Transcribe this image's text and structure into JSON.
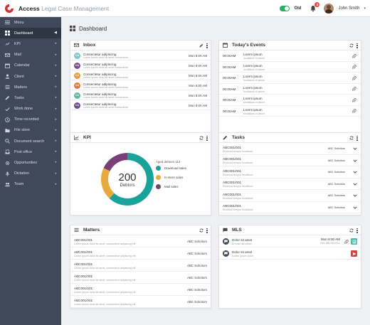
{
  "app": {
    "brand_name": "Access",
    "brand_product": "Legal Case Management",
    "toggle_label": "Old",
    "notification_count": "3",
    "user_name": "John Smith"
  },
  "sidebar": {
    "items": [
      {
        "label": "Menu",
        "icon": "hamburger-icon",
        "chevron": false
      },
      {
        "label": "Dashboard",
        "icon": "dashboard-icon",
        "chevron": true,
        "active": true
      },
      {
        "label": "KPI",
        "icon": "chart-line-icon",
        "chevron": true
      },
      {
        "label": "Mail",
        "icon": "mail-icon",
        "chevron": true
      },
      {
        "label": "Calendar",
        "icon": "calendar-icon",
        "chevron": true
      },
      {
        "label": "Client",
        "icon": "person-icon",
        "chevron": true
      },
      {
        "label": "Matters",
        "icon": "list-icon",
        "chevron": true
      },
      {
        "label": "Tasks",
        "icon": "pencil-icon",
        "chevron": true
      },
      {
        "label": "Work done",
        "icon": "check-icon",
        "chevron": true
      },
      {
        "label": "Time recorded",
        "icon": "clock-icon",
        "chevron": true
      },
      {
        "label": "File store",
        "icon": "folder-icon",
        "chevron": true
      },
      {
        "label": "Document search",
        "icon": "search-icon",
        "chevron": true
      },
      {
        "label": "Post office",
        "icon": "inbox-icon",
        "chevron": true
      },
      {
        "label": "Opportunities",
        "icon": "gear-icon",
        "chevron": true
      },
      {
        "label": "Dictation",
        "icon": "microphone-icon",
        "chevron": true
      },
      {
        "label": "Team",
        "icon": "team-icon",
        "chevron": true
      }
    ]
  },
  "page": {
    "title": "Dashboard"
  },
  "inbox": {
    "title": "Inbox",
    "rows": [
      {
        "initials": "CA",
        "color": "#7fc4c8",
        "subject": "Consectetur adipiscing",
        "preview": "Lorem ipsum dolor sit amet consectetur",
        "time": "Mon 8:00 AM"
      },
      {
        "initials": "CA",
        "color": "#7b4e8a",
        "subject": "Consectetur adipiscing",
        "preview": "Lorem ipsum dolor sit amet consectetur",
        "time": "Mon 8:00 AM"
      },
      {
        "initials": "CA",
        "color": "#e49b3b",
        "subject": "Consectetur adipiscing",
        "preview": "Lorem ipsum dolor sit amet consectetur",
        "time": "Mon 8:00 AM"
      },
      {
        "initials": "CA",
        "color": "#e07a3a",
        "subject": "Consectetur adipiscing",
        "preview": "Lorem ipsum dolor sit amet consectetur",
        "time": "Mon 8:00 AM"
      },
      {
        "initials": "CA",
        "color": "#5db89c",
        "subject": "Consectetur adipiscing",
        "preview": "Lorem ipsum dolor sit amet consectetur",
        "time": "Mon 8:00 AM"
      },
      {
        "initials": "CA",
        "color": "#6b4c86",
        "subject": "Consectetur adipiscing",
        "preview": "Lorem ipsum dolor sit amet consectetur",
        "time": "Mon 8:00 AM"
      }
    ]
  },
  "events": {
    "title": "Today's Events",
    "rows": [
      {
        "time": "00:00AM",
        "title": "Lorem ipsum",
        "sub": "Incididunt ut labore"
      },
      {
        "time": "00:00AM",
        "title": "Lorem ipsum",
        "sub": "Incididunt ut labore"
      },
      {
        "time": "00:00AM",
        "title": "Lorem ipsum",
        "sub": "Incididunt ut labore"
      },
      {
        "time": "00:00AM",
        "title": "Lorem ipsum",
        "sub": "Incididunt ut labore"
      },
      {
        "time": "00:00AM",
        "title": "Lorem ipsum",
        "sub": "Incididunt ut labore"
      },
      {
        "time": "00:00AM",
        "title": "Lorem ipsum",
        "sub": "Incididunt ut labore"
      }
    ]
  },
  "kpi": {
    "title": "KPI",
    "donut_value": "200",
    "donut_label": "Debtors",
    "legend_title": "Aged debtors",
    "legend_suffix": "113",
    "legend": [
      {
        "label": "Download sales",
        "color": "#1aa39a"
      },
      {
        "label": "In-store sales",
        "color": "#e8aa3c"
      },
      {
        "label": "Mail sales",
        "color": "#7a3f78"
      }
    ]
  },
  "chart_data": {
    "type": "pie",
    "categories": [
      "Download sales",
      "In-store sales",
      "Mail sales"
    ],
    "values": [
      62,
      20,
      18
    ],
    "center_value": 200,
    "center_label": "Debtors"
  },
  "tasks": {
    "title": "Tasks",
    "rows": [
      {
        "id": "ABC001/001",
        "sub": "Eiusmod tempor incididunt",
        "owner": "ABC Solicitors"
      },
      {
        "id": "ABC001/001",
        "sub": "Eiusmod tempor incididunt",
        "owner": "ABC Solicitors"
      },
      {
        "id": "ABC001/001",
        "sub": "Eiusmod tempor incididunt",
        "owner": "ABC Solicitors"
      },
      {
        "id": "ABC001/001",
        "sub": "Eiusmod tempor incididunt",
        "owner": "ABC Solicitors"
      },
      {
        "id": "ABC001/001",
        "sub": "Eiusmod tempor incididunt",
        "owner": "ABC Solicitors"
      },
      {
        "id": "ABC001/001",
        "sub": "Eiusmod tempor incididunt",
        "owner": "ABC Solicitors"
      }
    ]
  },
  "matters": {
    "title": "Matters",
    "rows": [
      {
        "id": "ABC001/001",
        "sub": "Lorem ipsum dolor sit amet, consectetur adipiscing elit",
        "owner": "ABC Solicitors"
      },
      {
        "id": "ABC001/001",
        "sub": "Lorem ipsum dolor sit amet, consectetur adipiscing elit",
        "owner": "ABC Solicitors"
      },
      {
        "id": "ABC001/001",
        "sub": "Lorem ipsum dolor sit amet, consectetur adipiscing elit",
        "owner": "ABC Solicitors"
      },
      {
        "id": "ABC001/001",
        "sub": "Lorem ipsum dolor sit amet, consectetur adipiscing elit",
        "owner": "ABC Solicitors"
      },
      {
        "id": "ABC001/001",
        "sub": "Lorem ipsum dolor sit amet, consectetur adipiscing elit",
        "owner": "ABC Solicitors"
      },
      {
        "id": "ABC001/001",
        "sub": "Lorem ipsum dolor sit amet, consectetur adipiscing elit",
        "owner": "ABC Solicitors"
      }
    ]
  },
  "mls": {
    "title": "MLS",
    "rows": [
      {
        "title": "Dolor sit amet",
        "sub": "Ut enim ad minim",
        "time": "Mon 8:00 AM",
        "ref": "Ref: ABC001/001",
        "action_color": "#3fbfb0"
      },
      {
        "title": "Dolor sit amet",
        "sub": "Lorem ipsum dolor",
        "time": "",
        "ref": "",
        "action_color": "#d9433b"
      }
    ]
  }
}
